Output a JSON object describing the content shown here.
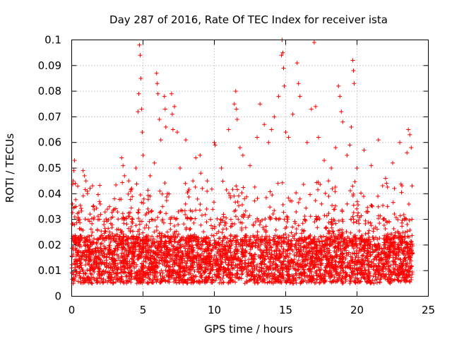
{
  "chart_data": {
    "type": "scatter",
    "title": "Day 287 of 2016, Rate Of TEC Index for receiver ista",
    "xlabel": "GPS time / hours",
    "ylabel": "ROTI / TECUs",
    "xlim": [
      0,
      25
    ],
    "ylim": [
      0,
      0.1
    ],
    "xticks": [
      0,
      5,
      10,
      15,
      20,
      25
    ],
    "yticks": [
      0,
      0.01,
      0.02,
      0.03,
      0.04,
      0.05,
      0.06,
      0.07,
      0.08,
      0.09,
      0.1
    ],
    "xtick_labels": [
      "0",
      "5",
      "10",
      "15",
      "20",
      "25"
    ],
    "ytick_labels": [
      "0",
      "0.01",
      "0.02",
      "0.03",
      "0.04",
      "0.05",
      "0.06",
      "0.07",
      "0.08",
      "0.09",
      "0.1"
    ],
    "grid": true,
    "marker": "+",
    "color": "#ff0000",
    "data_time_range_hours": [
      0,
      23.9
    ],
    "typical_roti_band": [
      0.005,
      0.03
    ],
    "series": [
      {
        "name": "ROTI",
        "points": [
          [
            0.05,
            0.036
          ],
          [
            0.1,
            0.045
          ],
          [
            0.15,
            0.049
          ],
          [
            0.2,
            0.053
          ],
          [
            0.25,
            0.044
          ],
          [
            0.3,
            0.035
          ],
          [
            0.8,
            0.049
          ],
          [
            0.9,
            0.047
          ],
          [
            1.0,
            0.045
          ],
          [
            1.1,
            0.041
          ],
          [
            1.5,
            0.035
          ],
          [
            2.0,
            0.036
          ],
          [
            2.5,
            0.034
          ],
          [
            3.0,
            0.038
          ],
          [
            3.5,
            0.054
          ],
          [
            3.6,
            0.051
          ],
          [
            3.7,
            0.047
          ],
          [
            4.0,
            0.045
          ],
          [
            4.2,
            0.042
          ],
          [
            4.5,
            0.05
          ],
          [
            4.65,
            0.072
          ],
          [
            4.7,
            0.079
          ],
          [
            4.75,
            0.098
          ],
          [
            4.8,
            0.094
          ],
          [
            4.85,
            0.085
          ],
          [
            4.9,
            0.073
          ],
          [
            4.95,
            0.064
          ],
          [
            5.0,
            0.055
          ],
          [
            5.5,
            0.047
          ],
          [
            5.8,
            0.052
          ],
          [
            5.95,
            0.087
          ],
          [
            6.0,
            0.083
          ],
          [
            6.05,
            0.079
          ],
          [
            6.15,
            0.069
          ],
          [
            6.25,
            0.061
          ],
          [
            6.5,
            0.078
          ],
          [
            6.55,
            0.073
          ],
          [
            6.6,
            0.066
          ],
          [
            7.0,
            0.079
          ],
          [
            7.05,
            0.071
          ],
          [
            7.1,
            0.065
          ],
          [
            7.2,
            0.074
          ],
          [
            7.4,
            0.064
          ],
          [
            7.6,
            0.05
          ],
          [
            8.0,
            0.061
          ],
          [
            8.5,
            0.045
          ],
          [
            8.7,
            0.054
          ],
          [
            9.0,
            0.055
          ],
          [
            9.05,
            0.048
          ],
          [
            9.5,
            0.045
          ],
          [
            10.0,
            0.06
          ],
          [
            10.05,
            0.059
          ],
          [
            10.5,
            0.05
          ],
          [
            11.0,
            0.065
          ],
          [
            11.4,
            0.075
          ],
          [
            11.5,
            0.08
          ],
          [
            11.55,
            0.073
          ],
          [
            11.6,
            0.069
          ],
          [
            11.8,
            0.058
          ],
          [
            12.0,
            0.055
          ],
          [
            12.5,
            0.051
          ],
          [
            13.0,
            0.062
          ],
          [
            13.2,
            0.075
          ],
          [
            13.5,
            0.067
          ],
          [
            13.8,
            0.06
          ],
          [
            14.0,
            0.065
          ],
          [
            14.2,
            0.07
          ],
          [
            14.5,
            0.078
          ],
          [
            14.7,
            0.094
          ],
          [
            14.75,
            0.1
          ],
          [
            14.8,
            0.095
          ],
          [
            14.85,
            0.089
          ],
          [
            14.9,
            0.082
          ],
          [
            15.0,
            0.064
          ],
          [
            15.2,
            0.062
          ],
          [
            15.5,
            0.071
          ],
          [
            15.8,
            0.091
          ],
          [
            15.9,
            0.083
          ],
          [
            16.0,
            0.078
          ],
          [
            16.5,
            0.06
          ],
          [
            16.8,
            0.073
          ],
          [
            17.0,
            0.099
          ],
          [
            17.1,
            0.074
          ],
          [
            17.3,
            0.062
          ],
          [
            17.7,
            0.053
          ],
          [
            18.0,
            0.045
          ],
          [
            18.2,
            0.05
          ],
          [
            18.5,
            0.058
          ],
          [
            18.7,
            0.082
          ],
          [
            18.8,
            0.078
          ],
          [
            18.9,
            0.072
          ],
          [
            19.0,
            0.068
          ],
          [
            19.3,
            0.055
          ],
          [
            19.5,
            0.059
          ],
          [
            19.6,
            0.066
          ],
          [
            19.7,
            0.092
          ],
          [
            19.75,
            0.088
          ],
          [
            19.8,
            0.083
          ],
          [
            20.0,
            0.05
          ],
          [
            20.5,
            0.057
          ],
          [
            21.0,
            0.051
          ],
          [
            21.5,
            0.061
          ],
          [
            22.0,
            0.046
          ],
          [
            22.5,
            0.052
          ],
          [
            23.0,
            0.06
          ],
          [
            23.5,
            0.056
          ],
          [
            23.6,
            0.065
          ],
          [
            23.7,
            0.063
          ],
          [
            23.8,
            0.058
          ]
        ]
      }
    ]
  }
}
